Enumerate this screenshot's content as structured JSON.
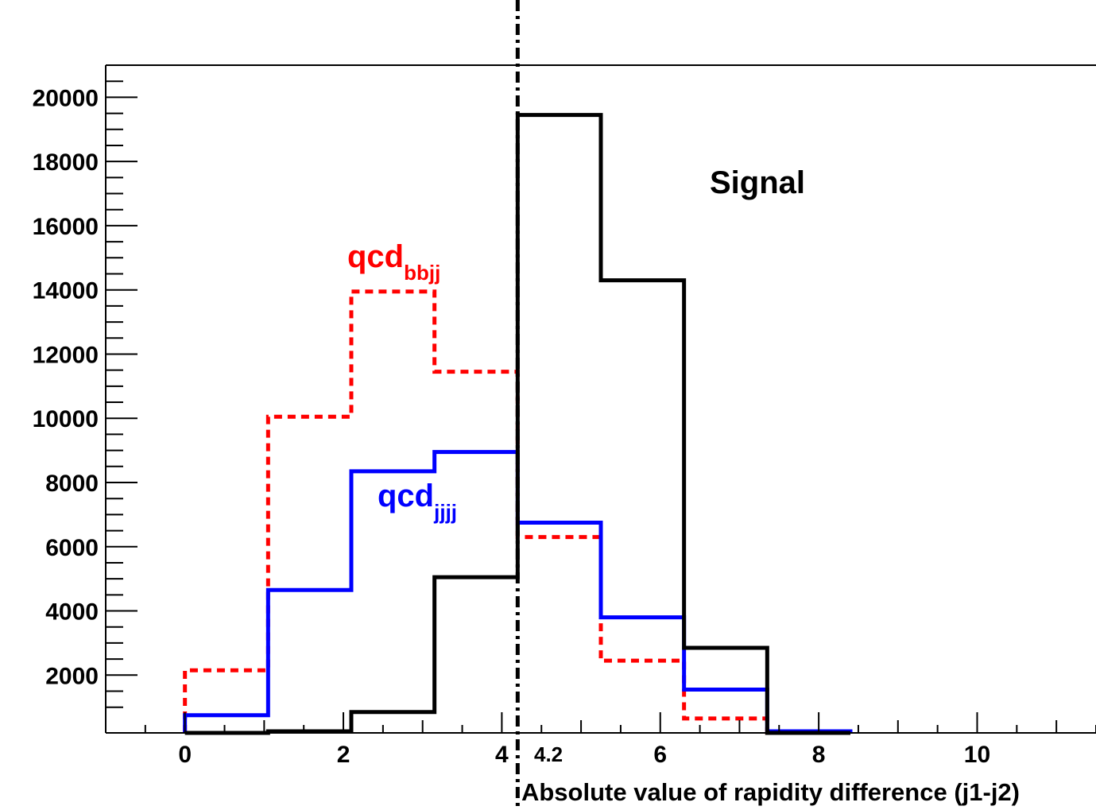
{
  "chart_data": {
    "type": "histogram",
    "xlabel": "Absolute value of rapidity difference (j1-j2)",
    "ylabel": "",
    "xlim": [
      -1,
      11.5
    ],
    "ylim": [
      200,
      21000
    ],
    "x_ticks": [
      0,
      2,
      4,
      6,
      8,
      10
    ],
    "y_ticks": [
      2000,
      4000,
      6000,
      8000,
      10000,
      12000,
      14000,
      16000,
      18000,
      20000
    ],
    "bin_edges": [
      0,
      1.05,
      2.1,
      3.15,
      4.2,
      5.25,
      6.3,
      7.35,
      8.4
    ],
    "series": [
      {
        "name": "qcd",
        "subscript": "bbjj",
        "color": "#ff0000",
        "line_style": "dotted",
        "values": [
          2150,
          10050,
          13950,
          11450,
          6300,
          2450,
          650,
          200
        ]
      },
      {
        "name": "qcd",
        "subscript": "jjjj",
        "color": "#0000ff",
        "line_style": "solid",
        "values": [
          750,
          4650,
          8350,
          8950,
          6750,
          3800,
          1550,
          250
        ]
      },
      {
        "name": "Signal",
        "subscript": "",
        "color": "#000000",
        "line_style": "solid",
        "values": [
          200,
          250,
          850,
          5050,
          19450,
          14300,
          2850,
          200
        ]
      }
    ],
    "cut": {
      "x": 4.2,
      "label": "4.2"
    },
    "grid": false,
    "legend": "none"
  }
}
